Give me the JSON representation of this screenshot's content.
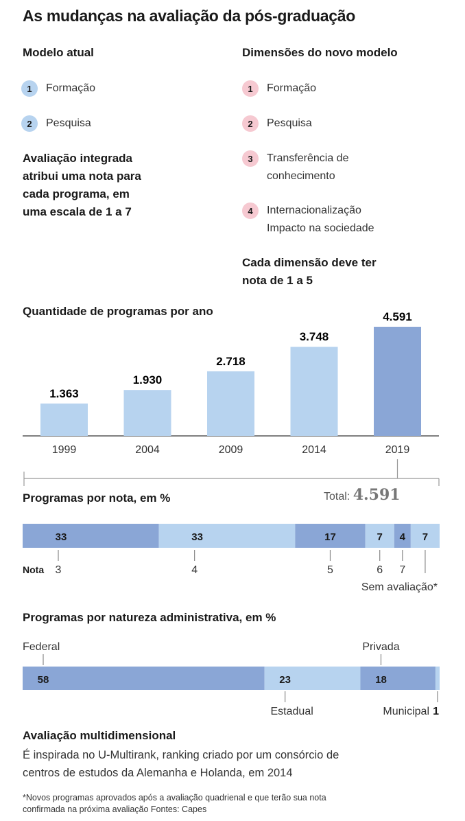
{
  "title": "As mudanças na avaliação da pós-graduação",
  "current_model": {
    "heading": "Modelo atual",
    "items": [
      {
        "n": "1",
        "label": "Formação"
      },
      {
        "n": "2",
        "label": "Pesquisa"
      }
    ],
    "note_lines": [
      "Avaliação integrada",
      "atribui uma nota para",
      "cada programa, em",
      "uma escala de 1 a 7"
    ]
  },
  "new_model": {
    "heading": "Dimensões do novo modelo",
    "items": [
      {
        "n": "1",
        "lines": [
          "Formação"
        ]
      },
      {
        "n": "2",
        "lines": [
          "Pesquisa"
        ]
      },
      {
        "n": "3",
        "lines": [
          "Transferência de",
          "conhecimento"
        ]
      },
      {
        "n": "4",
        "lines": [
          "Internacionalização",
          "Impacto na sociedade"
        ]
      }
    ],
    "note_lines": [
      "Cada dimensão deve ter",
      "nota de 1 a 5"
    ]
  },
  "colors": {
    "light_blue": "#b7d3ef",
    "dark_blue": "#8aa6d6",
    "pink": "#f6c9d1",
    "axis": "#555555"
  },
  "chart_data": [
    {
      "type": "bar",
      "title": "Quantidade de programas por ano",
      "categories": [
        "1999",
        "2004",
        "2009",
        "2014",
        "2019"
      ],
      "values": [
        1363,
        1930,
        2718,
        3748,
        4591
      ],
      "value_labels": [
        "1.363",
        "1.930",
        "2.718",
        "3.748",
        "4.591"
      ],
      "highlight_index": 4,
      "ylim": [
        0,
        4591
      ]
    },
    {
      "type": "bar",
      "title": "Programas por nota, em %",
      "total_label": "Total:",
      "total_value": "4.591",
      "axis_prefix": "Nota",
      "segments": [
        {
          "label": "3",
          "value": 33,
          "value_label": "33"
        },
        {
          "label": "4",
          "value": 33,
          "value_label": "33"
        },
        {
          "label": "5",
          "value": 17,
          "value_label": "17"
        },
        {
          "label": "6",
          "value": 7,
          "value_label": "7"
        },
        {
          "label": "7",
          "value": 4,
          "value_label": "4"
        },
        {
          "label": "Sem avaliação*",
          "value": 7,
          "value_label": "7"
        }
      ]
    },
    {
      "type": "bar",
      "title": "Programas por natureza administrativa, em %",
      "segments": [
        {
          "label": "Federal",
          "value": 58,
          "value_label": "58"
        },
        {
          "label": "Estadual",
          "value": 23,
          "value_label": "23"
        },
        {
          "label": "Privada",
          "value": 18,
          "value_label": "18"
        },
        {
          "label": "Municipal",
          "value": 1,
          "value_label": "1"
        }
      ]
    }
  ],
  "multidim": {
    "heading": "Avaliação multidimensional",
    "text_lines": [
      "É inspirada no U-Multirank, ranking criado por um consórcio de",
      "centros de estudos da Alemanha e Holanda, em 2014"
    ]
  },
  "footnote_lines": [
    "*Novos programas aprovados após a avaliação quadrienal e que terão sua nota",
    "confirmada na próxima avaliação Fontes: Capes"
  ]
}
